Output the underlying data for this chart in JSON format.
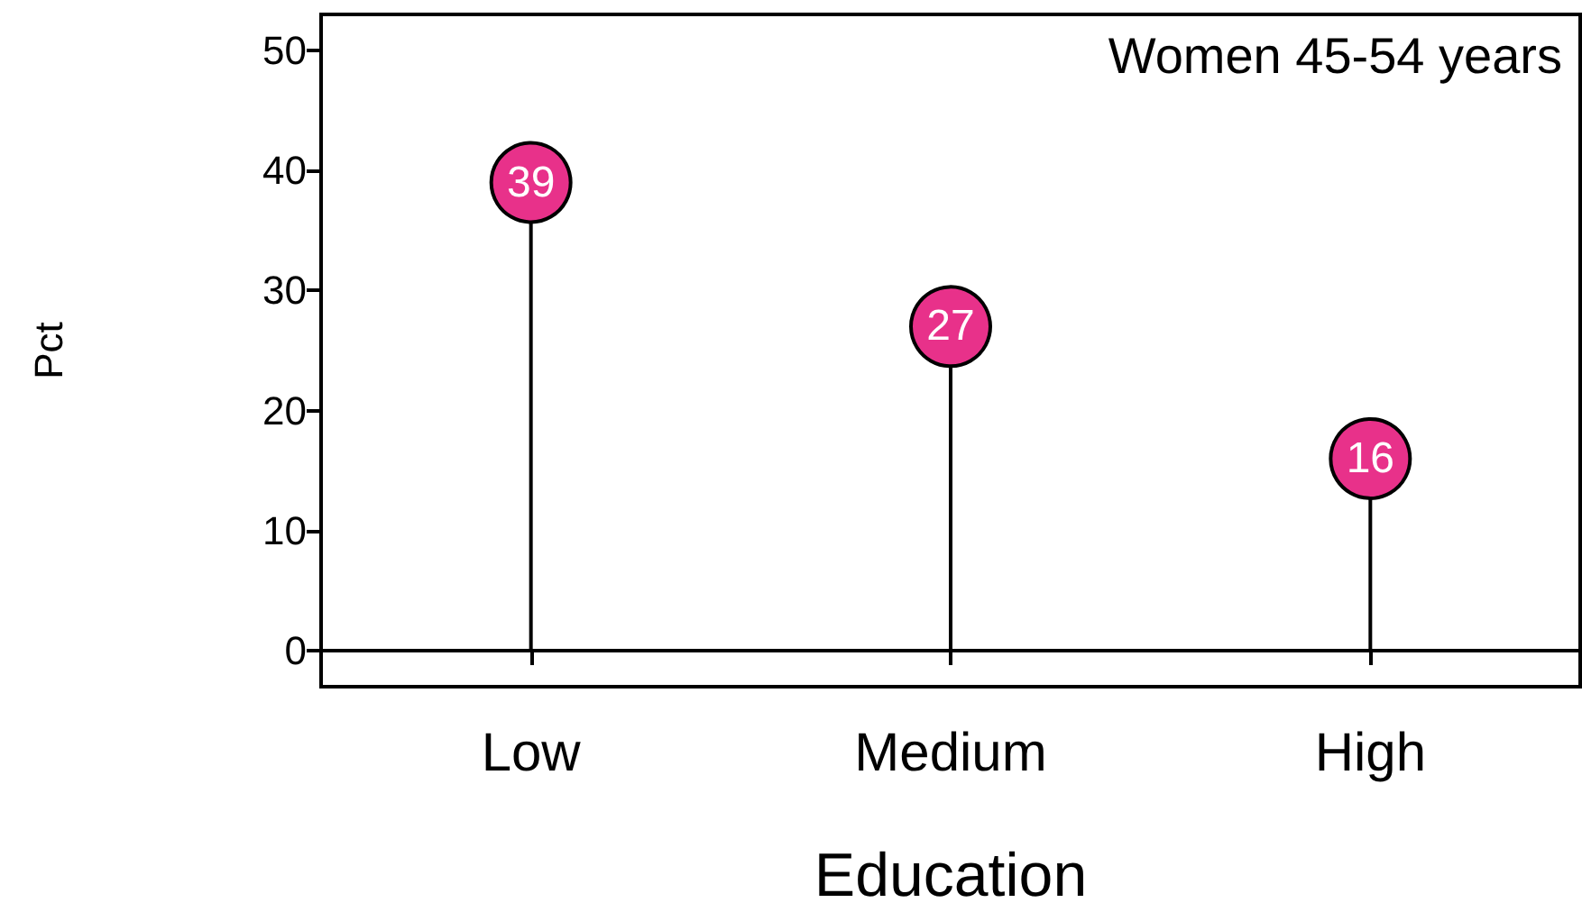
{
  "chart_data": {
    "type": "lollipop",
    "title": "Women 45-54 years",
    "xlabel": "Education",
    "ylabel": "Pct",
    "categories": [
      "Low",
      "Medium",
      "High"
    ],
    "values": [
      39,
      27,
      16
    ],
    "color": "#e8318a",
    "marker": "circle",
    "data_labels": true,
    "ylim": [
      -3,
      53
    ],
    "yticks": [
      0,
      10,
      20,
      30,
      40,
      50
    ]
  }
}
